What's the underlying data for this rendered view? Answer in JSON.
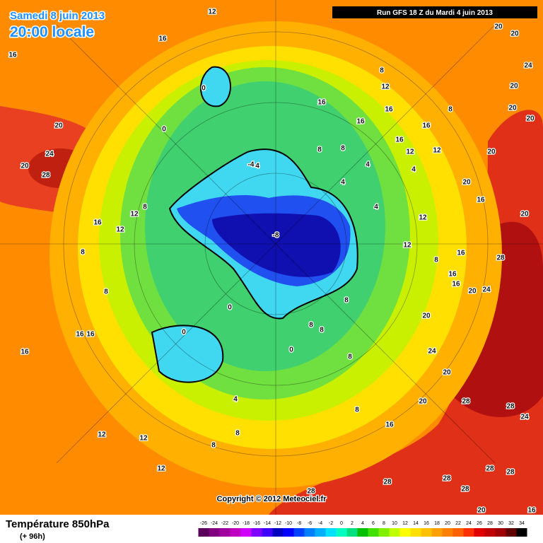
{
  "header": {
    "date": "Samedi 8 juin 2013",
    "time": "20:00 locale",
    "run": "Run GFS 18 Z du Mardi 4 juin 2013"
  },
  "footer": {
    "copyright": "Copyright © 2012 Meteociel.fr"
  },
  "legend": {
    "title": "Température 850hPa",
    "subtitle": "(+ 96h)",
    "ticks": [
      -26,
      -24,
      -22,
      -20,
      -18,
      -16,
      -14,
      -12,
      -10,
      -8,
      -6,
      -4,
      -2,
      0,
      2,
      4,
      6,
      8,
      10,
      12,
      14,
      16,
      18,
      20,
      22,
      24,
      26,
      28,
      30,
      32,
      34
    ],
    "colors": [
      "#5a005a",
      "#800080",
      "#a000a0",
      "#c000c0",
      "#d000ff",
      "#8000ff",
      "#4000ff",
      "#0000c0",
      "#0000ff",
      "#0040ff",
      "#0080ff",
      "#00b0ff",
      "#00e0ff",
      "#00ffc0",
      "#00e080",
      "#00c000",
      "#40e000",
      "#80f000",
      "#c0ff00",
      "#ffff00",
      "#ffe000",
      "#ffc000",
      "#ffa000",
      "#ff8000",
      "#ff6000",
      "#ff3000",
      "#e00000",
      "#c00000",
      "#a00000",
      "#600000",
      "#000000"
    ]
  },
  "map_labels": [
    12,
    16,
    16,
    20,
    24,
    20,
    28,
    20,
    20,
    24,
    20,
    20,
    20,
    20,
    20,
    16,
    20,
    28,
    24,
    20,
    16,
    16,
    16,
    20,
    24,
    20,
    20,
    28,
    28,
    24,
    16,
    28,
    28,
    28,
    28,
    28,
    28,
    20,
    16,
    12,
    12,
    12,
    16,
    16,
    16,
    16,
    12,
    8,
    0,
    0,
    0,
    0,
    0,
    -8,
    -4,
    4,
    8,
    8,
    4,
    8,
    8,
    12,
    16,
    16,
    16,
    16,
    8,
    8,
    12,
    16,
    12,
    12,
    4,
    12,
    12,
    8,
    4,
    4,
    8,
    4,
    8,
    8,
    8,
    8,
    8,
    8
  ]
}
